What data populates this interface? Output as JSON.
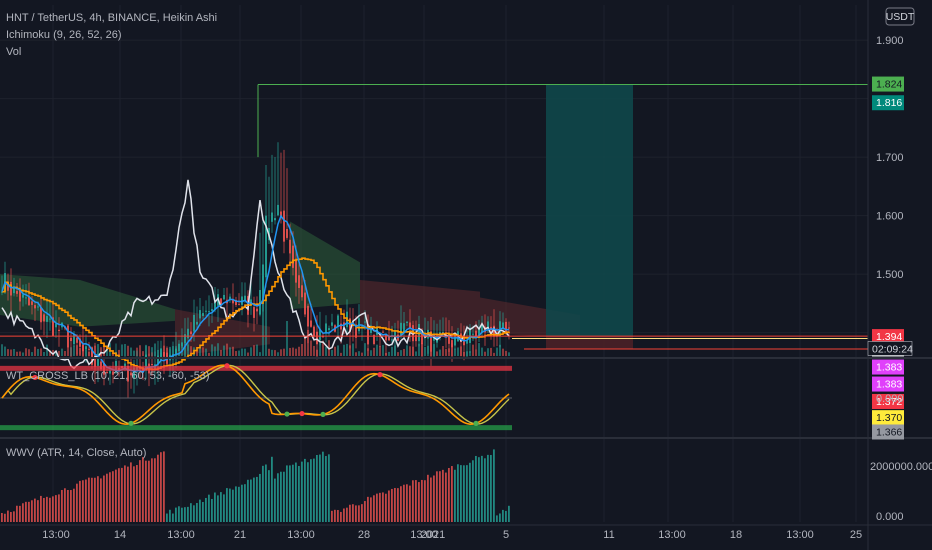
{
  "legend": {
    "symbol": "HNT / TetherUS, 4h, BINANCE, Heikin Ashi",
    "ichimoku": "Ichimoku (9, 26, 52, 26)",
    "vol": "Vol",
    "wt": "WT_CROSS_LB (10, 21, 60, 53, -60, -53)",
    "wwv": "WWV (ATR, 14, Close, Auto)"
  },
  "currency_button": "USDT",
  "colors": {
    "background": "#131722",
    "grid": "#1e222d",
    "candle_up": "#26a69a",
    "candle_down": "#ef5350",
    "white_line": "#e0e3eb",
    "orange_line": "#ff9800",
    "blue_line": "#2196f3",
    "cloud_green": "#2e5e3a",
    "cloud_red": "#5e2a2e",
    "target_box": "#10474a",
    "stop_box": "#4a2027",
    "target_line": "#4caf50",
    "entry_line": "#f44336",
    "wave_orange": "#ff9800",
    "wave_yellow": "#c6c44a"
  },
  "chart_data": [
    {
      "type": "candlestick",
      "pane": "main",
      "x_tick_labels": [
        "13:00",
        "14",
        "13:00",
        "21",
        "13:00",
        "28",
        "13:00",
        "2021",
        "5",
        "11",
        "13:00",
        "18",
        "13:00",
        "25"
      ],
      "y_ticks": [
        1.5,
        1.6,
        1.7
      ],
      "ylim": [
        1.36,
        1.96
      ],
      "price_labels": [
        {
          "value": "1.824",
          "bg": "#4caf50",
          "fg": "#131722"
        },
        {
          "value": "1.816",
          "bg": "#00897b",
          "fg": "#ffffff"
        },
        {
          "value": "1.394",
          "bg": "#f23645",
          "fg": "#ffffff"
        },
        {
          "value": "1.390",
          "bg": "#ffffff",
          "fg": "#131722"
        },
        {
          "value": "1.383",
          "bg": "#e040fb",
          "fg": "#ffffff"
        },
        {
          "value": "1.383",
          "bg": "#e040fb",
          "fg": "#ffffff"
        },
        {
          "value": "1.372",
          "bg": "#f23645",
          "fg": "#ffffff"
        },
        {
          "value": "1.370",
          "bg": "#ffeb3b",
          "fg": "#131722"
        },
        {
          "value": "1.366",
          "bg": "#9598a1",
          "fg": "#131722"
        }
      ],
      "countdown": "02:09:24",
      "position": {
        "entry": 1.394,
        "target": 1.824,
        "stop": 1.372
      },
      "last_price": 1.39
    },
    {
      "type": "line",
      "pane": "WT_CROSS_LB",
      "y_ticks": [
        0.0
      ],
      "y_tick_labels": [
        "0.000"
      ],
      "upper_band": 53,
      "lower_band": -53
    },
    {
      "type": "bar",
      "pane": "WWV",
      "y_ticks": [
        0,
        2000000
      ],
      "y_tick_labels": [
        "0.000",
        "2000000.000"
      ]
    }
  ]
}
